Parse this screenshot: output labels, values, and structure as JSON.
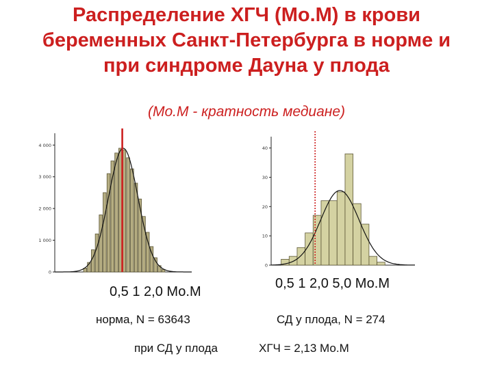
{
  "title": {
    "line1": "Распределение   ХГЧ (Мо.М) в крови",
    "line2": "беременных Санкт-Петербурга в норме и",
    "line3": "при синдроме Дауна у плода"
  },
  "subtitle": "(Мо.М - кратность медиане)",
  "chart_data": [
    {
      "type": "bar",
      "title": "",
      "xlabel": "0,5  1  2,0   Мо.М",
      "ylabel": "",
      "ylim": [
        0,
        4200
      ],
      "yticks": [
        "0",
        "1 000",
        "2 000",
        "3 000",
        "4 000"
      ],
      "ytick_values": [
        0,
        1000,
        2000,
        3000,
        4000
      ],
      "median_line": 1.0,
      "fitted_curve": "normal",
      "bar_color": "#b5ad82",
      "line_color": "#cc1f1f",
      "bins": [
        {
          "x": -0.78,
          "value": 120
        },
        {
          "x": -0.7,
          "value": 300
        },
        {
          "x": -0.62,
          "value": 700
        },
        {
          "x": -0.54,
          "value": 1200
        },
        {
          "x": -0.46,
          "value": 1800
        },
        {
          "x": -0.38,
          "value": 2500
        },
        {
          "x": -0.3,
          "value": 3100
        },
        {
          "x": -0.22,
          "value": 3500
        },
        {
          "x": -0.14,
          "value": 3750
        },
        {
          "x": -0.06,
          "value": 3900
        },
        {
          "x": 0.02,
          "value": 3850
        },
        {
          "x": 0.1,
          "value": 3600
        },
        {
          "x": 0.18,
          "value": 3250
        },
        {
          "x": 0.26,
          "value": 2800
        },
        {
          "x": 0.34,
          "value": 2300
        },
        {
          "x": 0.42,
          "value": 1750
        },
        {
          "x": 0.5,
          "value": 1250
        },
        {
          "x": 0.58,
          "value": 800
        },
        {
          "x": 0.66,
          "value": 450
        },
        {
          "x": 0.74,
          "value": 200
        },
        {
          "x": 0.82,
          "value": 80
        }
      ],
      "curve_mean": 0.0,
      "curve_sd": 0.3,
      "curve_peak": 3900,
      "xrange": [
        -1.4,
        1.4
      ],
      "median_x": -0.02
    },
    {
      "type": "bar",
      "title": "",
      "xlabel": "0,5  1  2,0  5,0 Мо.М",
      "ylabel": "",
      "ylim": [
        0,
        42
      ],
      "yticks": [
        "0",
        "10",
        "20",
        "30",
        "40"
      ],
      "ytick_values": [
        0,
        10,
        20,
        30,
        40
      ],
      "fitted_curve": "normal",
      "bar_color": "#d4d2a2",
      "line_color": "#cc1f1f",
      "bins": [
        {
          "x": -0.85,
          "value": 2
        },
        {
          "x": -0.65,
          "value": 3
        },
        {
          "x": -0.45,
          "value": 6
        },
        {
          "x": -0.25,
          "value": 11
        },
        {
          "x": -0.05,
          "value": 17
        },
        {
          "x": 0.15,
          "value": 22
        },
        {
          "x": 0.35,
          "value": 22
        },
        {
          "x": 0.55,
          "value": 25
        },
        {
          "x": 0.75,
          "value": 38
        },
        {
          "x": 0.95,
          "value": 21
        },
        {
          "x": 1.15,
          "value": 14
        },
        {
          "x": 1.35,
          "value": 3
        },
        {
          "x": 1.55,
          "value": 1
        }
      ],
      "curve_mean": 0.52,
      "curve_sd": 0.48,
      "curve_peak": 25.5,
      "xrange": [
        -1.2,
        2.4
      ],
      "median_x": -0.1
    }
  ],
  "captions": {
    "norm": "норма, N = 63643",
    "down": "СД у плода,  N = 274",
    "at_down": "при СД  у плода",
    "hcg": "ХГЧ = 2,13 Мо.М"
  }
}
